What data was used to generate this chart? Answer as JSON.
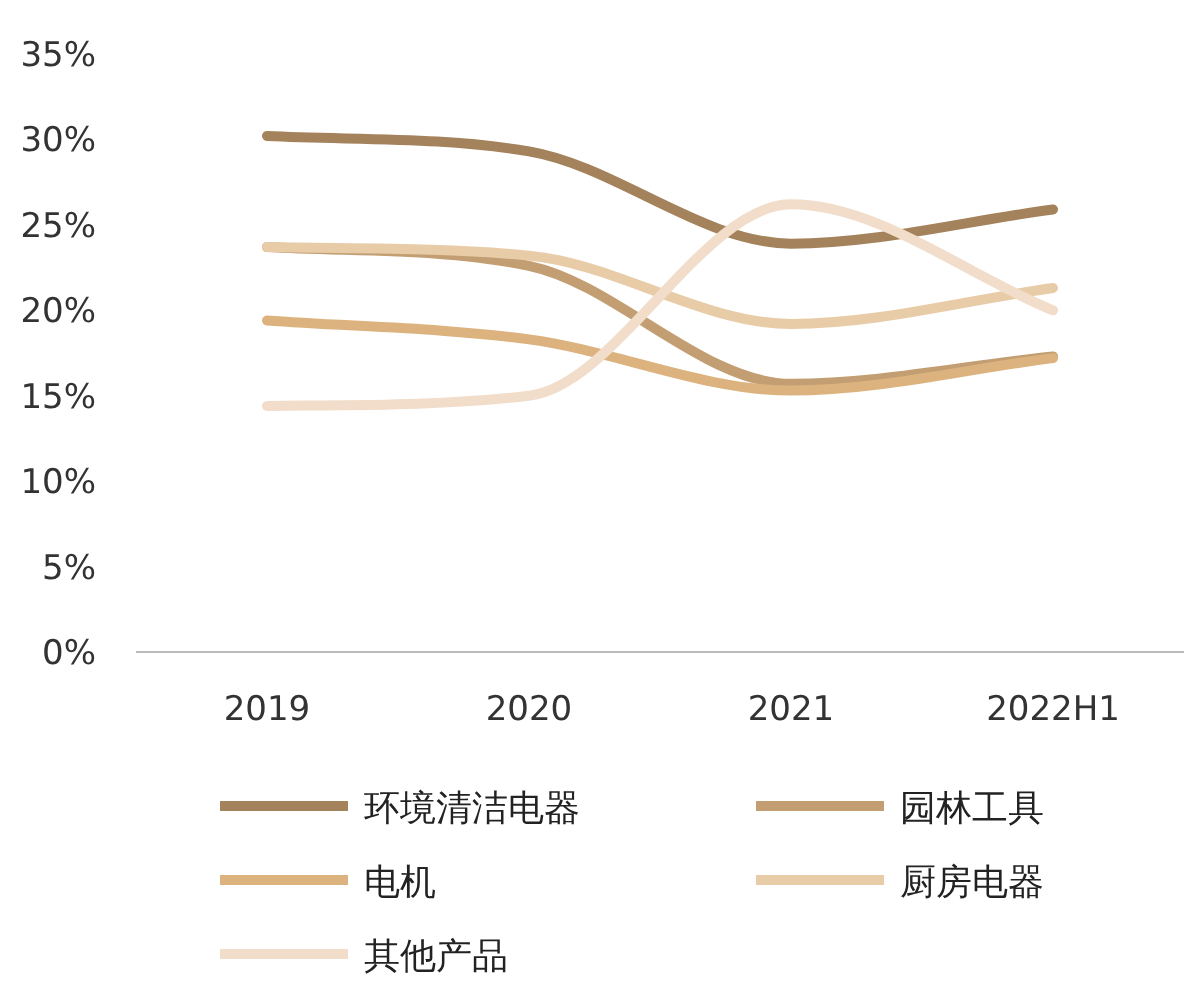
{
  "chart_data": {
    "type": "line",
    "categories": [
      "2019",
      "2020",
      "2021",
      "2022H1"
    ],
    "ylim": [
      0,
      35
    ],
    "yticks": [
      {
        "value": 0,
        "label": "0%"
      },
      {
        "value": 5,
        "label": "5%"
      },
      {
        "value": 10,
        "label": "10%"
      },
      {
        "value": 15,
        "label": "15%"
      },
      {
        "value": 20,
        "label": "20%"
      },
      {
        "value": 25,
        "label": "25%"
      },
      {
        "value": 30,
        "label": "30%"
      },
      {
        "value": 35,
        "label": "35%"
      }
    ],
    "grid": false,
    "legend": "bottom",
    "marker": "none",
    "line_style": "solid",
    "series": [
      {
        "name": "环境清洁电器",
        "color": "#a4825c",
        "values": [
          30.2,
          29.3,
          23.9,
          25.9
        ]
      },
      {
        "name": "园林工具",
        "color": "#c29e72",
        "values": [
          23.7,
          22.6,
          15.7,
          17.3
        ]
      },
      {
        "name": "电机",
        "color": "#dcb37e",
        "values": [
          19.4,
          18.3,
          15.3,
          17.2
        ]
      },
      {
        "name": "厨房电器",
        "color": "#e8cca8",
        "values": [
          23.7,
          23.2,
          19.2,
          21.3
        ]
      },
      {
        "name": "其他产品",
        "color": "#f1ddc9",
        "values": [
          14.4,
          15.0,
          26.2,
          20.0
        ]
      }
    ]
  }
}
